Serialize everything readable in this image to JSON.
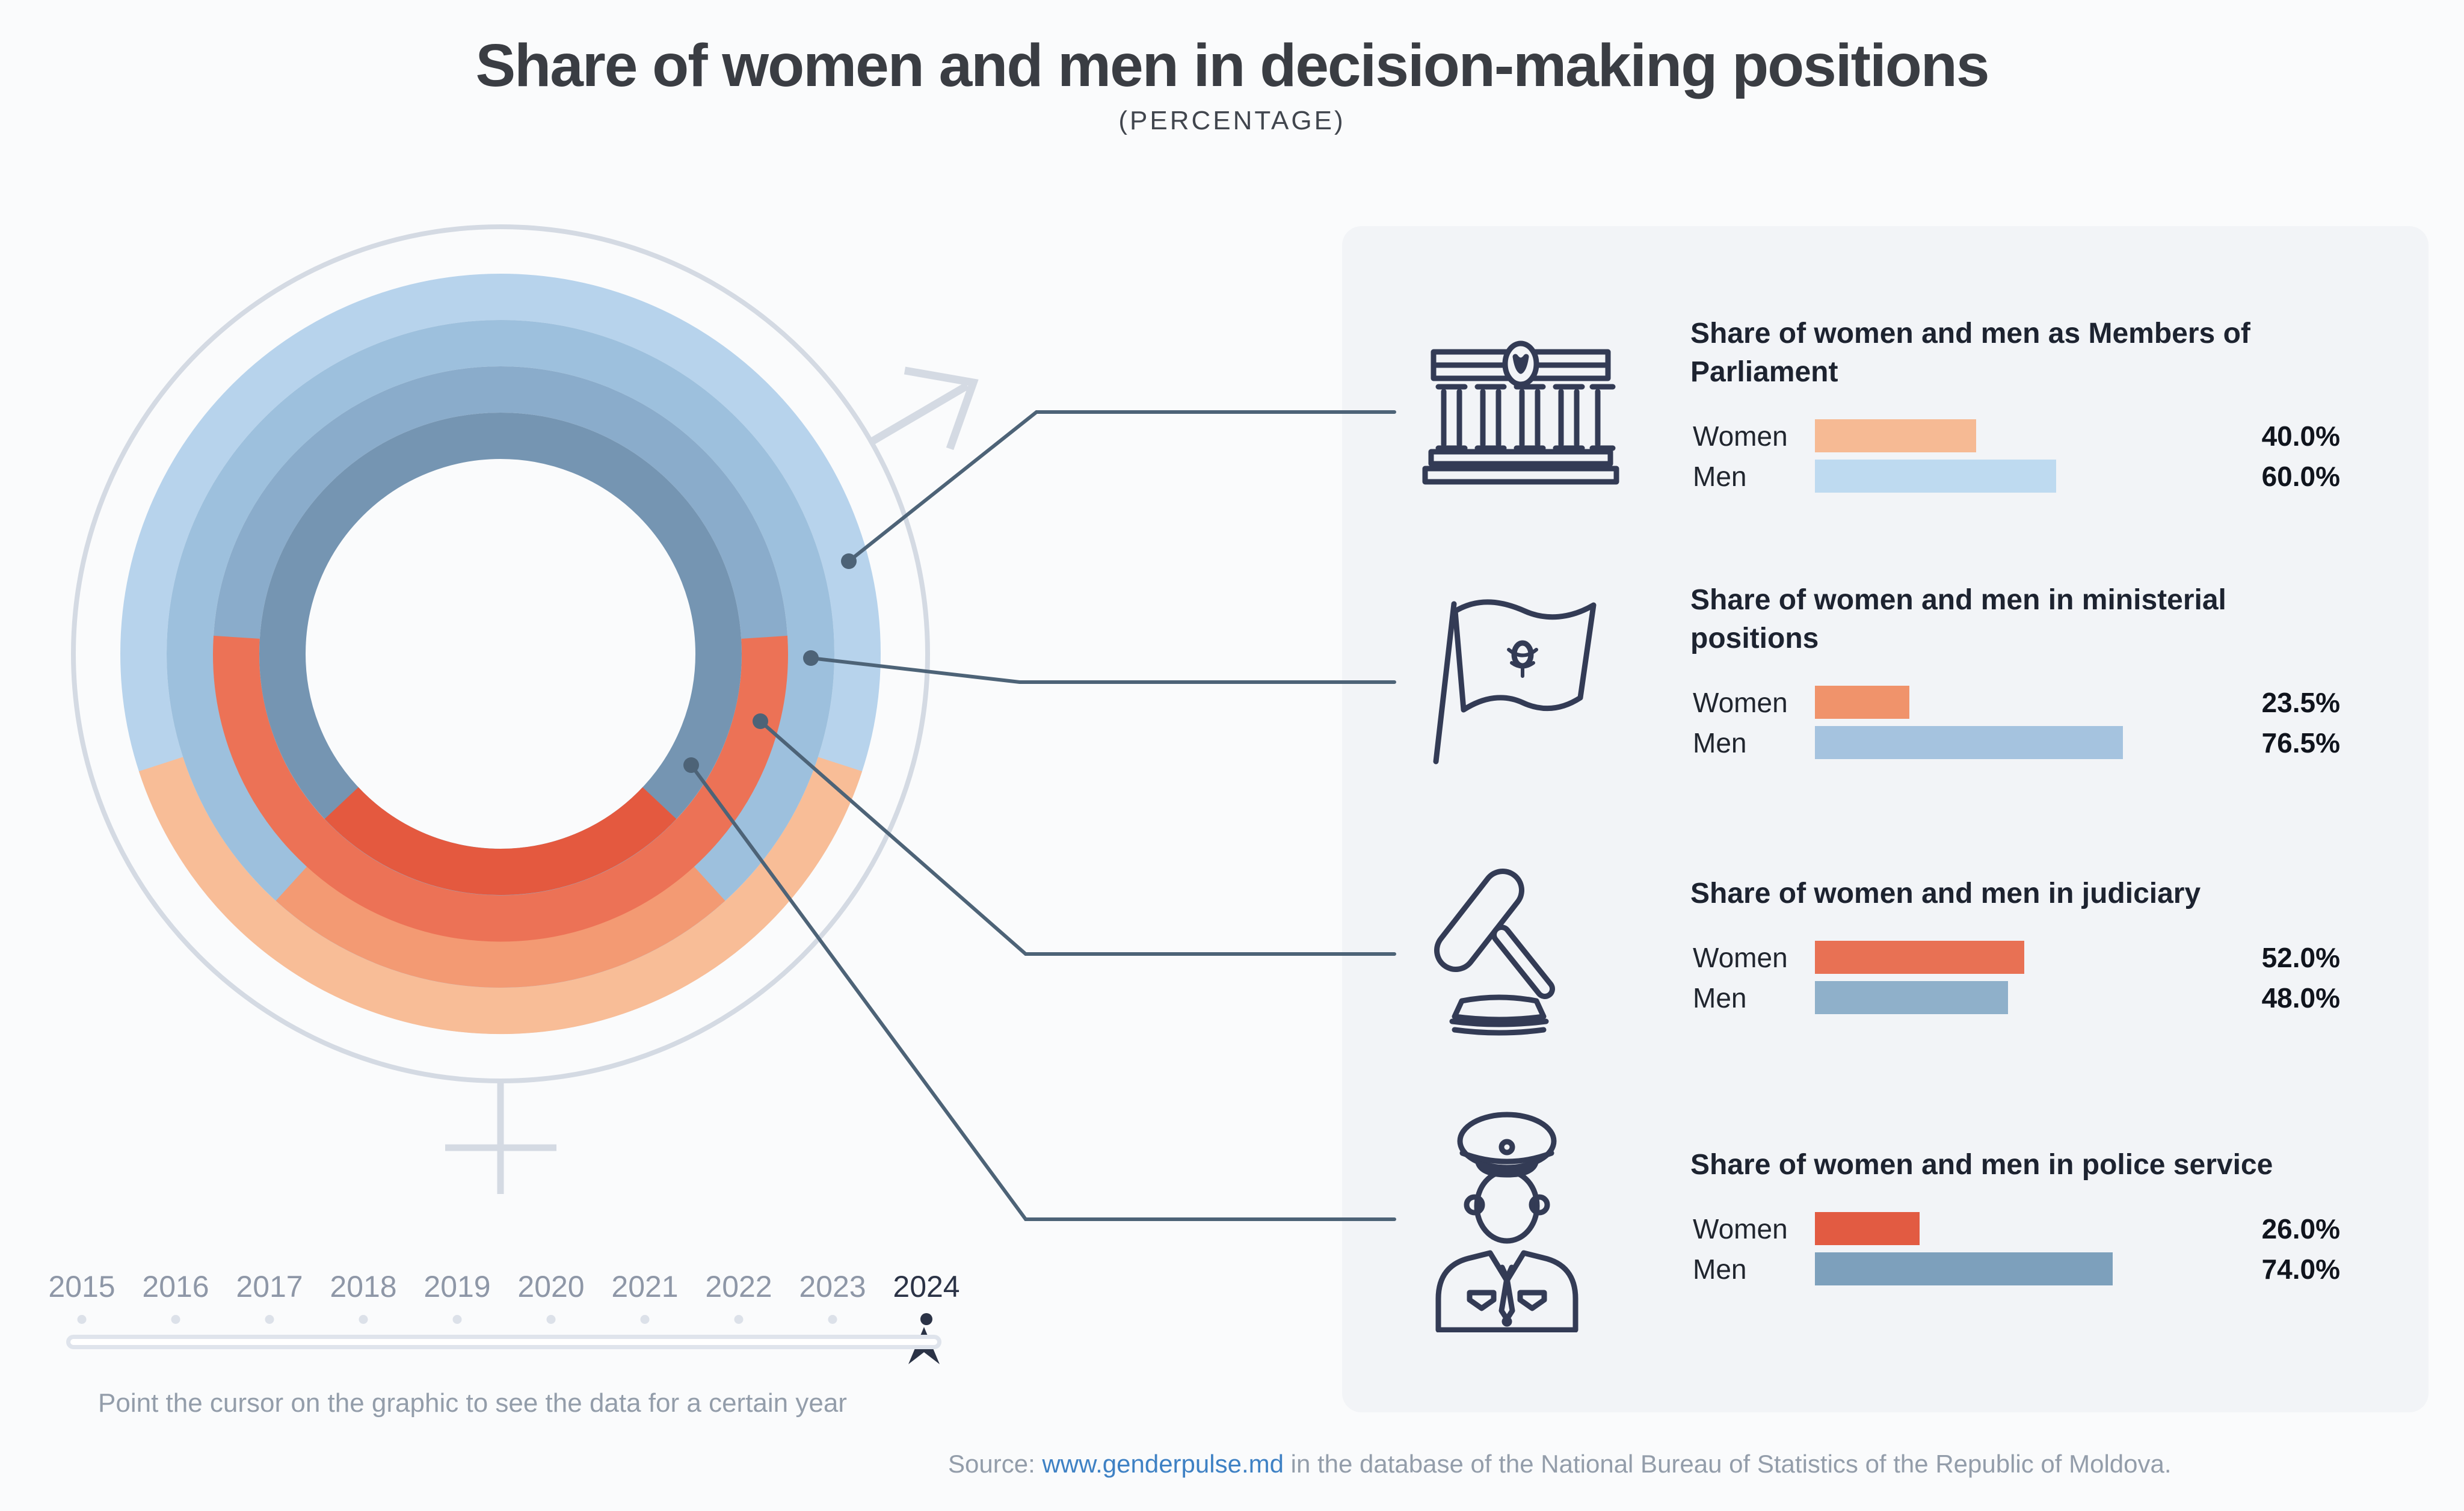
{
  "header": {
    "title": "Share of women and men in decision-making positions",
    "subtitle": "(PERCENTAGE)"
  },
  "chart_data": {
    "type": "donut",
    "title": "Share of women and men in decision-making positions",
    "subtitle": "(PERCENTAGE)",
    "unit": "percent",
    "selected_year": "2024",
    "layout_note": "four concentric rings; women share drawn as orange arc centered at the bottom of each ring, men share fills the rest in blue; outermost ring = Parliament, innermost = police",
    "rings": [
      {
        "label": "Members of Parliament",
        "women": 40.0,
        "men": 60.0,
        "women_color": "#f8bd97",
        "men_color": "#b7d3ec"
      },
      {
        "label": "Ministerial positions",
        "women": 23.5,
        "men": 76.5,
        "women_color": "#f39a73",
        "men_color": "#9dc0dd"
      },
      {
        "label": "Judiciary",
        "women": 52.0,
        "men": 48.0,
        "women_color": "#ec7256",
        "men_color": "#8aaccb"
      },
      {
        "label": "Police service",
        "women": 26.0,
        "men": 74.0,
        "women_color": "#e4593f",
        "men_color": "#7595b2"
      }
    ]
  },
  "sections": [
    {
      "icon": "parliament-building-icon",
      "title": "Share of women and men as Members of Parliament",
      "rows": [
        {
          "label": "Women",
          "value": 40.0,
          "value_label": "40.0%",
          "color": "#f6ba94"
        },
        {
          "label": "Men",
          "value": 60.0,
          "value_label": "60.0%",
          "color": "#bedaf0"
        }
      ]
    },
    {
      "icon": "moldova-flag-icon",
      "title": "Share of women and men in ministerial positions",
      "rows": [
        {
          "label": "Women",
          "value": 23.5,
          "value_label": "23.5%",
          "color": "#f0936b"
        },
        {
          "label": "Men",
          "value": 76.5,
          "value_label": "76.5%",
          "color": "#a5c3df"
        }
      ]
    },
    {
      "icon": "gavel-icon",
      "title": "Share of women and men in judiciary",
      "rows": [
        {
          "label": "Women",
          "value": 52.0,
          "value_label": "52.0%",
          "color": "#e87154"
        },
        {
          "label": "Men",
          "value": 48.0,
          "value_label": "48.0%",
          "color": "#8fb0ca"
        }
      ]
    },
    {
      "icon": "police-officer-icon",
      "title": "Share of women and men in police service",
      "rows": [
        {
          "label": "Women",
          "value": 26.0,
          "value_label": "26.0%",
          "color": "#e25b42"
        },
        {
          "label": "Men",
          "value": 74.0,
          "value_label": "74.0%",
          "color": "#7da0bc"
        }
      ]
    }
  ],
  "timeline": {
    "years": [
      "2015",
      "2016",
      "2017",
      "2018",
      "2019",
      "2020",
      "2021",
      "2022",
      "2023",
      "2024"
    ],
    "selected": "2024",
    "hint": "Point the cursor on the graphic to see the data for a certain year"
  },
  "source": {
    "label": "Source: ",
    "link": "www.genderpulse.md",
    "text": " in the database of the National Bureau of Statistics of the Republic of Moldova."
  },
  "colors": {
    "page_bg": "#fafbfc",
    "panel_bg": "#f2f4f7",
    "connector": "#4d6377",
    "gender_symbol": "#d4dae3",
    "icon_stroke": "#333b55",
    "link": "#3e81c4",
    "muted_text": "#939daa",
    "selected_year": "#2b3346"
  }
}
